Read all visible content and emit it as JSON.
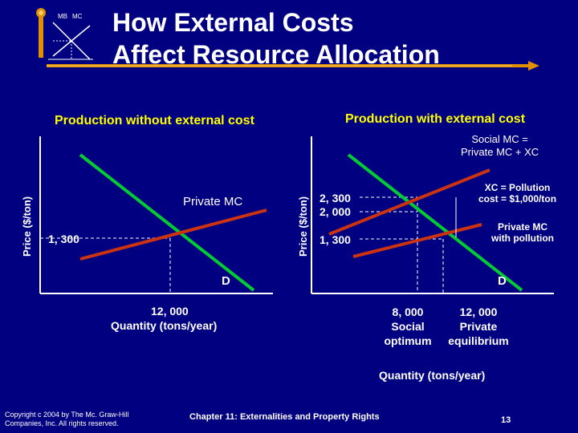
{
  "slide": {
    "title_line1": "How External Costs",
    "title_line2": "Affect Resource Allocation",
    "logo_mb": "MB",
    "logo_mc": "MC",
    "page_number": "13"
  },
  "left_panel": {
    "heading": "Production without external cost",
    "y_axis_label": "Price ($/ton)",
    "curve_supply_label": "Private MC",
    "curve_demand_label": "D",
    "price_tick": "1, 300",
    "quantity_tick": "12, 000",
    "x_axis_label": "Quantity (tons/year)"
  },
  "right_panel": {
    "heading": "Production with external cost",
    "y_axis_label": "Price ($/ton)",
    "social_mc_line1": "Social MC =",
    "social_mc_line2": "Private MC + XC",
    "xc_line1": "XC = Pollution",
    "xc_line2": "cost = $1,000/ton",
    "private_mc_line1": "Private MC",
    "private_mc_line2": "with pollution",
    "curve_demand_label": "D",
    "price_tick_1": "2, 300",
    "price_tick_2": "2, 000",
    "price_tick_3": "1, 300",
    "q_social_line1": "8, 000",
    "q_social_line2": "Social",
    "q_social_line3": "optimum",
    "q_private_line1": "12, 000",
    "q_private_line2": "Private",
    "q_private_line3": "equilibrium",
    "x_axis_label": "Quantity (tons/year)"
  },
  "footer": {
    "copyright_line1": "Copyright c 2004 by The Mc. Graw-Hill",
    "copyright_line2": "Companies, Inc. All rights reserved.",
    "chapter": "Chapter 11: Externalities and Property Rights"
  },
  "colors": {
    "background": "#000080",
    "heading": "#ffff00",
    "demand_curve": "#00cc33",
    "mc_curve": "#cc3311",
    "axis": "#ffffff"
  }
}
